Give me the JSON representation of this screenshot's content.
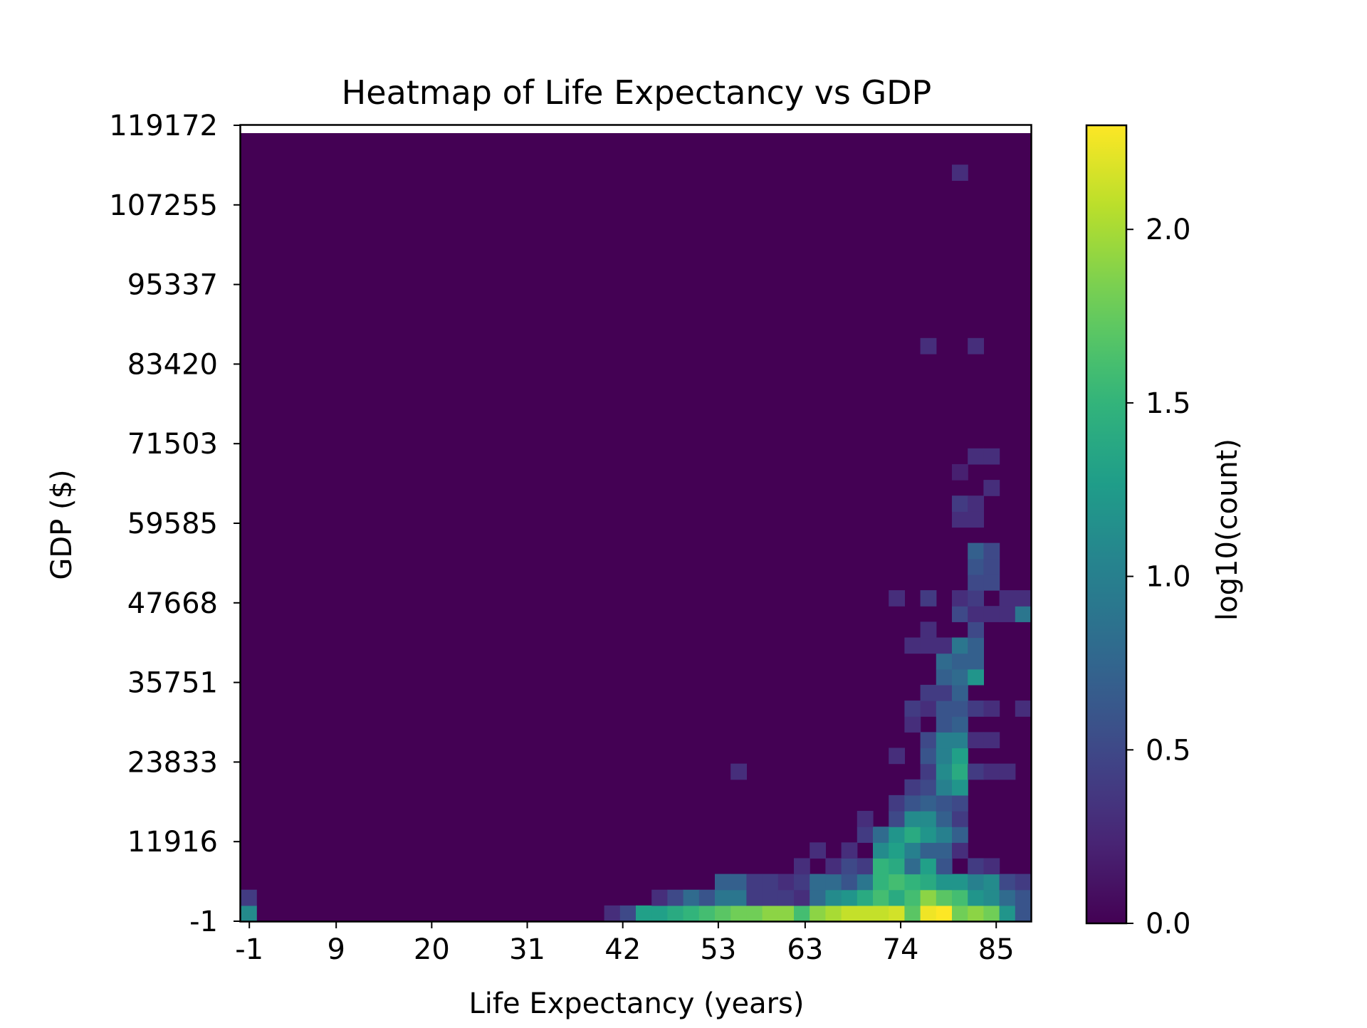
{
  "chart_data": {
    "type": "heatmap",
    "title": "Heatmap of Life Expectancy vs GDP",
    "xlabel": "Life Expectancy (years)",
    "ylabel": "GDP ($)",
    "colorbar_label": "log10(count)",
    "x_ticks": [
      "-1",
      "9",
      "20",
      "31",
      "42",
      "53",
      "63",
      "74",
      "85"
    ],
    "x_tick_values": [
      -1,
      9,
      20,
      31,
      42,
      53,
      63,
      74,
      85
    ],
    "y_ticks": [
      "119172",
      "107255",
      "95337",
      "83420",
      "71503",
      "59585",
      "47668",
      "35751",
      "23833",
      "11916",
      "-1"
    ],
    "y_tick_values": [
      119172,
      107255,
      95337,
      83420,
      71503,
      59585,
      47668,
      35751,
      23833,
      11916,
      -1
    ],
    "xlim": [
      -2,
      89
    ],
    "ylim": [
      -1,
      119172
    ],
    "bins": {
      "x_count": 50,
      "y_count": 50,
      "x_range": [
        -2,
        89
      ],
      "y_range": [
        -1,
        118000
      ]
    },
    "colorbar_ticks": [
      "0.0",
      "0.5",
      "1.0",
      "1.5",
      "2.0"
    ],
    "colorbar_tick_values": [
      0.0,
      0.5,
      1.0,
      1.5,
      2.0
    ],
    "colorbar_range": [
      0.0,
      2.3
    ],
    "colormap": "viridis",
    "cells": [
      [
        0,
        0,
        1.1
      ],
      [
        0,
        1,
        0.4
      ],
      [
        23,
        0,
        0.3
      ],
      [
        24,
        0,
        0.5
      ],
      [
        25,
        0,
        1.3
      ],
      [
        26,
        0,
        1.3
      ],
      [
        27,
        0,
        1.4
      ],
      [
        28,
        0,
        1.5
      ],
      [
        29,
        0,
        1.6
      ],
      [
        30,
        0,
        1.7
      ],
      [
        31,
        0,
        1.8
      ],
      [
        32,
        0,
        1.8
      ],
      [
        33,
        0,
        1.9
      ],
      [
        34,
        0,
        1.9
      ],
      [
        35,
        0,
        1.6
      ],
      [
        36,
        0,
        1.9
      ],
      [
        37,
        0,
        2.0
      ],
      [
        38,
        0,
        2.1
      ],
      [
        39,
        0,
        2.1
      ],
      [
        40,
        0,
        2.1
      ],
      [
        41,
        0,
        2.15
      ],
      [
        42,
        0,
        1.7
      ],
      [
        43,
        0,
        2.25
      ],
      [
        44,
        0,
        2.3
      ],
      [
        45,
        0,
        1.8
      ],
      [
        46,
        0,
        1.9
      ],
      [
        47,
        0,
        1.8
      ],
      [
        48,
        0,
        1.2
      ],
      [
        49,
        0,
        0.6
      ],
      [
        26,
        1,
        0.3
      ],
      [
        27,
        1,
        0.5
      ],
      [
        28,
        1,
        0.8
      ],
      [
        29,
        1,
        0.6
      ],
      [
        30,
        1,
        0.9
      ],
      [
        31,
        1,
        0.9
      ],
      [
        32,
        1,
        0.4
      ],
      [
        33,
        1,
        0.4
      ],
      [
        34,
        1,
        0.4
      ],
      [
        35,
        1,
        0.3
      ],
      [
        36,
        1,
        0.8
      ],
      [
        37,
        1,
        1.1
      ],
      [
        38,
        1,
        1.2
      ],
      [
        39,
        1,
        1.4
      ],
      [
        40,
        1,
        1.6
      ],
      [
        41,
        1,
        1.4
      ],
      [
        42,
        1,
        1.6
      ],
      [
        43,
        1,
        1.9
      ],
      [
        44,
        1,
        1.7
      ],
      [
        45,
        1,
        1.6
      ],
      [
        46,
        1,
        1.2
      ],
      [
        47,
        1,
        1.1
      ],
      [
        48,
        1,
        0.8
      ],
      [
        49,
        1,
        0.6
      ],
      [
        30,
        2,
        0.7
      ],
      [
        31,
        2,
        0.7
      ],
      [
        32,
        2,
        0.4
      ],
      [
        33,
        2,
        0.4
      ],
      [
        34,
        2,
        0.3
      ],
      [
        35,
        2,
        0.4
      ],
      [
        36,
        2,
        0.8
      ],
      [
        37,
        2,
        0.8
      ],
      [
        38,
        2,
        0.6
      ],
      [
        39,
        2,
        0.9
      ],
      [
        40,
        2,
        1.5
      ],
      [
        41,
        2,
        1.6
      ],
      [
        42,
        2,
        1.5
      ],
      [
        43,
        2,
        1.4
      ],
      [
        44,
        2,
        1.2
      ],
      [
        45,
        2,
        1.2
      ],
      [
        46,
        2,
        1.0
      ],
      [
        47,
        2,
        1.1
      ],
      [
        48,
        2,
        0.5
      ],
      [
        49,
        2,
        0.4
      ],
      [
        35,
        3,
        0.3
      ],
      [
        37,
        3,
        0.3
      ],
      [
        38,
        3,
        0.5
      ],
      [
        39,
        3,
        0.4
      ],
      [
        40,
        3,
        1.5
      ],
      [
        41,
        3,
        1.4
      ],
      [
        42,
        3,
        0.8
      ],
      [
        43,
        3,
        1.3
      ],
      [
        44,
        3,
        0.6
      ],
      [
        46,
        3,
        0.4
      ],
      [
        47,
        3,
        0.3
      ],
      [
        36,
        4,
        0.3
      ],
      [
        38,
        4,
        0.3
      ],
      [
        40,
        4,
        1.1
      ],
      [
        41,
        4,
        1.3
      ],
      [
        42,
        4,
        1.0
      ],
      [
        43,
        4,
        0.7
      ],
      [
        44,
        4,
        0.7
      ],
      [
        45,
        4,
        0.3
      ],
      [
        39,
        5,
        0.4
      ],
      [
        40,
        5,
        0.8
      ],
      [
        41,
        5,
        1.2
      ],
      [
        42,
        5,
        1.4
      ],
      [
        43,
        5,
        1.2
      ],
      [
        44,
        5,
        1.0
      ],
      [
        45,
        5,
        0.7
      ],
      [
        39,
        6,
        0.3
      ],
      [
        41,
        6,
        0.5
      ],
      [
        42,
        6,
        1.1
      ],
      [
        43,
        6,
        1.1
      ],
      [
        44,
        6,
        0.7
      ],
      [
        45,
        6,
        0.4
      ],
      [
        41,
        7,
        0.4
      ],
      [
        42,
        7,
        0.6
      ],
      [
        43,
        7,
        0.7
      ],
      [
        44,
        7,
        0.6
      ],
      [
        45,
        7,
        0.5
      ],
      [
        42,
        8,
        0.4
      ],
      [
        43,
        8,
        0.5
      ],
      [
        44,
        8,
        1.0
      ],
      [
        45,
        8,
        1.2
      ],
      [
        31,
        9,
        0.3
      ],
      [
        43,
        9,
        0.4
      ],
      [
        44,
        9,
        1.1
      ],
      [
        45,
        9,
        1.4
      ],
      [
        46,
        9,
        0.4
      ],
      [
        47,
        9,
        0.3
      ],
      [
        48,
        9,
        0.3
      ],
      [
        41,
        10,
        0.3
      ],
      [
        43,
        10,
        0.6
      ],
      [
        44,
        10,
        1.0
      ],
      [
        45,
        10,
        1.3
      ],
      [
        43,
        11,
        0.5
      ],
      [
        44,
        11,
        1.0
      ],
      [
        45,
        11,
        1.0
      ],
      [
        46,
        11,
        0.3
      ],
      [
        47,
        11,
        0.3
      ],
      [
        42,
        12,
        0.3
      ],
      [
        44,
        12,
        0.6
      ],
      [
        45,
        12,
        0.7
      ],
      [
        42,
        13,
        0.4
      ],
      [
        43,
        13,
        0.3
      ],
      [
        44,
        13,
        0.6
      ],
      [
        45,
        13,
        0.6
      ],
      [
        46,
        13,
        0.4
      ],
      [
        47,
        13,
        0.3
      ],
      [
        49,
        13,
        0.3
      ],
      [
        43,
        14,
        0.4
      ],
      [
        44,
        14,
        0.4
      ],
      [
        45,
        14,
        0.7
      ],
      [
        44,
        15,
        0.7
      ],
      [
        45,
        15,
        0.8
      ],
      [
        46,
        15,
        1.2
      ],
      [
        44,
        16,
        0.8
      ],
      [
        45,
        16,
        0.7
      ],
      [
        46,
        16,
        0.7
      ],
      [
        42,
        17,
        0.3
      ],
      [
        43,
        17,
        0.3
      ],
      [
        44,
        17,
        0.3
      ],
      [
        45,
        17,
        0.9
      ],
      [
        46,
        17,
        0.7
      ],
      [
        43,
        18,
        0.3
      ],
      [
        46,
        18,
        0.5
      ],
      [
        45,
        19,
        0.5
      ],
      [
        46,
        19,
        0.3
      ],
      [
        47,
        19,
        0.3
      ],
      [
        48,
        19,
        0.3
      ],
      [
        49,
        19,
        0.9
      ],
      [
        41,
        20,
        0.3
      ],
      [
        43,
        20,
        0.4
      ],
      [
        45,
        20,
        0.3
      ],
      [
        46,
        20,
        0.4
      ],
      [
        48,
        20,
        0.3
      ],
      [
        49,
        20,
        0.3
      ],
      [
        46,
        21,
        0.5
      ],
      [
        47,
        21,
        0.5
      ],
      [
        46,
        22,
        0.6
      ],
      [
        47,
        22,
        0.5
      ],
      [
        46,
        23,
        0.7
      ],
      [
        47,
        23,
        0.5
      ],
      [
        45,
        25,
        0.3
      ],
      [
        46,
        25,
        0.3
      ],
      [
        45,
        26,
        0.4
      ],
      [
        46,
        26,
        0.3
      ],
      [
        47,
        27,
        0.3
      ],
      [
        45,
        28,
        0.2
      ],
      [
        46,
        29,
        0.3
      ],
      [
        47,
        29,
        0.3
      ],
      [
        43,
        36,
        0.3
      ],
      [
        46,
        36,
        0.3
      ],
      [
        45,
        47,
        0.3
      ]
    ]
  }
}
